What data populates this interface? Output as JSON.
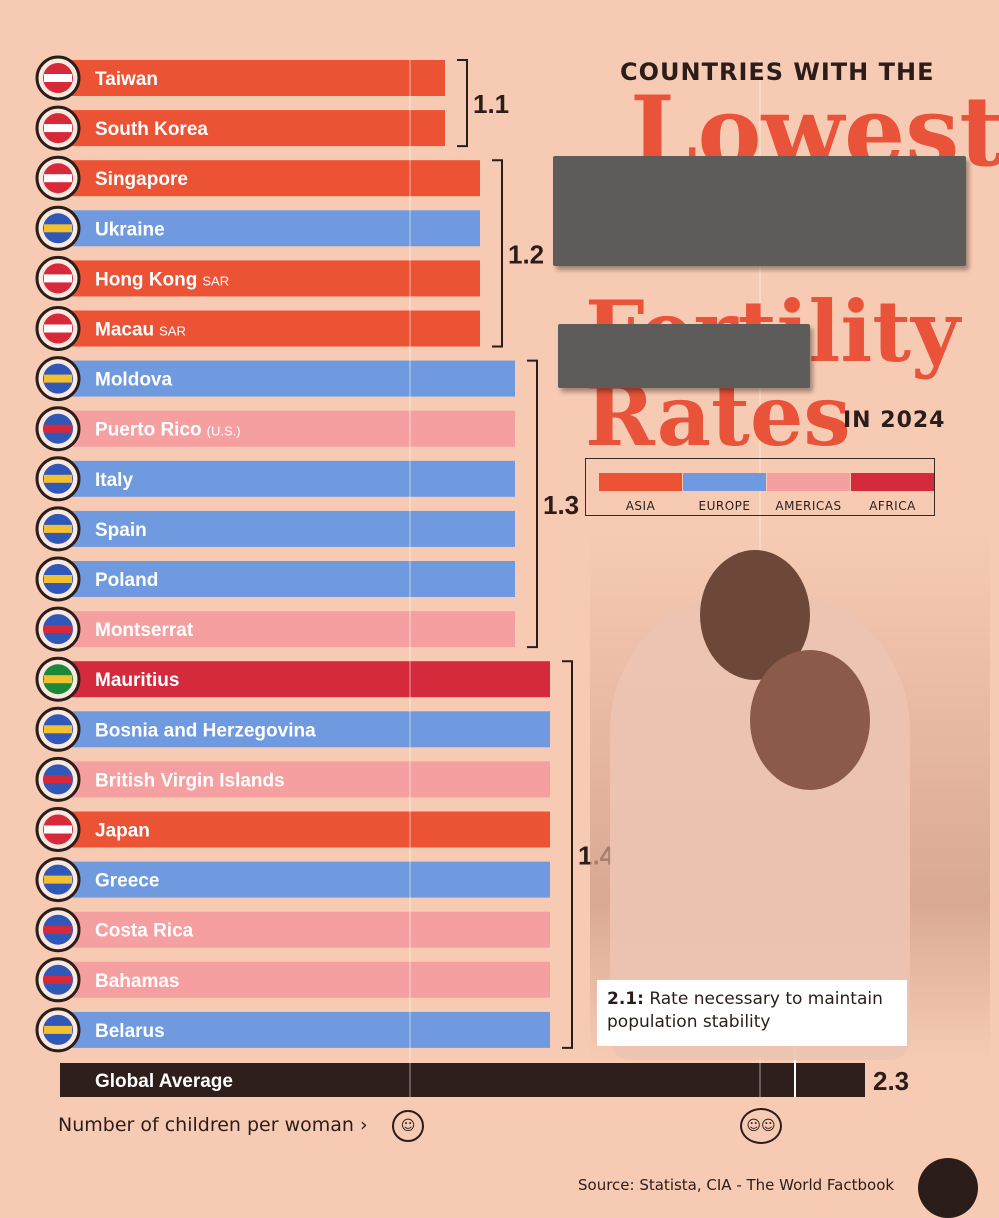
{
  "title": {
    "top": "COUNTRIES WITH THE",
    "big_line1": "Lowest",
    "big_line2": "Fertility Rates",
    "bottom": "IN 2024"
  },
  "legend": [
    {
      "label": "ASIA",
      "color": "#ec5234"
    },
    {
      "label": "EUROPE",
      "color": "#6f9ae0"
    },
    {
      "label": "AMERICAS",
      "color": "#f59fa0"
    },
    {
      "label": "AFRICA",
      "color": "#d52a3c"
    }
  ],
  "annotation": {
    "value": "2.1:",
    "text": "Rate necessary to maintain population stability"
  },
  "axis_title": "Number of children per woman",
  "source": "Source: Statista,  CIA - The World Factbook",
  "colors": {
    "background": "#f7cbb3",
    "global_bar": "#2e1f1c",
    "text_dark": "#2b1d1a"
  },
  "chart_data": {
    "type": "bar",
    "orientation": "horizontal",
    "xlabel": "Number of children per woman",
    "categories": [
      "Taiwan",
      "South Korea",
      "Singapore",
      "Ukraine",
      "Hong Kong",
      "Macau",
      "Moldova",
      "Puerto Rico",
      "Italy",
      "Spain",
      "Poland",
      "Montserrat",
      "Mauritius",
      "Bosnia and Herzegovina",
      "British Virgin Islands",
      "Japan",
      "Greece",
      "Costa Rica",
      "Bahamas",
      "Belarus"
    ],
    "suffixes": [
      "",
      "",
      "",
      "",
      "SAR",
      "SAR",
      "",
      "(U.S.)",
      "",
      "",
      "",
      "",
      "",
      "",
      "",
      "",
      "",
      "",
      "",
      ""
    ],
    "regions": [
      "Asia",
      "Asia",
      "Asia",
      "Europe",
      "Asia",
      "Asia",
      "Europe",
      "Americas",
      "Europe",
      "Europe",
      "Europe",
      "Americas",
      "Africa",
      "Europe",
      "Americas",
      "Asia",
      "Europe",
      "Americas",
      "Americas",
      "Europe"
    ],
    "values": [
      1.1,
      1.1,
      1.2,
      1.2,
      1.2,
      1.2,
      1.3,
      1.3,
      1.3,
      1.3,
      1.3,
      1.3,
      1.4,
      1.4,
      1.4,
      1.4,
      1.4,
      1.4,
      1.4,
      1.4
    ],
    "groups": [
      {
        "label": "1.1",
        "from": 0,
        "to": 1
      },
      {
        "label": "1.2",
        "from": 2,
        "to": 5
      },
      {
        "label": "1.3",
        "from": 6,
        "to": 11
      },
      {
        "label": "1.4",
        "from": 12,
        "to": 19
      }
    ],
    "global_average": {
      "label": "Global Average",
      "value": 2.3,
      "value_label": "2.3"
    },
    "reference_line": 2.1
  }
}
